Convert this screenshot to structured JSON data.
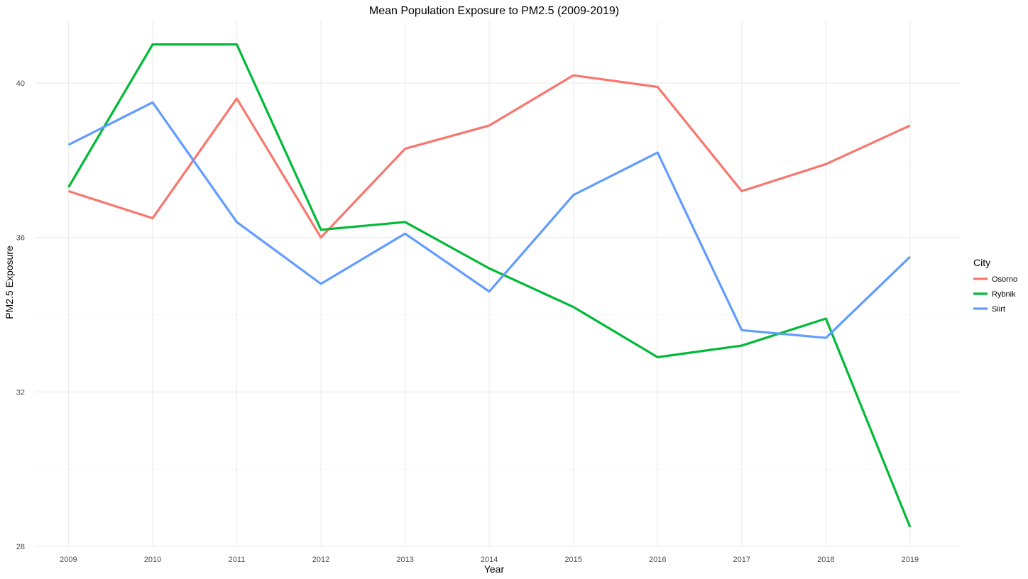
{
  "chart_data": {
    "type": "line",
    "title": "Mean Population Exposure to PM2.5 (2009-2019)",
    "xlabel": "Year",
    "ylabel": "PM2.5 Exposure",
    "x": [
      2009,
      2010,
      2011,
      2012,
      2013,
      2014,
      2015,
      2016,
      2017,
      2018,
      2019
    ],
    "x_tick_labels": [
      "2009",
      "2010",
      "2011",
      "2012",
      "2013",
      "2014",
      "2015",
      "2016",
      "2017",
      "2018",
      "2019"
    ],
    "xlim": [
      2008.6,
      2019.6
    ],
    "ylim": [
      28,
      41.6
    ],
    "y_major_ticks": [
      28,
      32,
      36,
      40
    ],
    "y_tick_labels": [
      "28",
      "32",
      "36",
      "40"
    ],
    "y_minor_ticks": [
      30,
      34,
      38
    ],
    "grid": true,
    "legend": {
      "title": "City",
      "position": "right"
    },
    "series": [
      {
        "name": "Osorno",
        "color": "#F8766D",
        "values": [
          37.2,
          36.5,
          39.6,
          36.0,
          38.3,
          38.9,
          40.2,
          39.9,
          37.2,
          37.9,
          38.9
        ]
      },
      {
        "name": "Rybnik",
        "color": "#00BA38",
        "values": [
          37.3,
          41.0,
          41.0,
          36.2,
          36.4,
          35.2,
          34.2,
          32.9,
          33.2,
          33.9,
          28.5
        ]
      },
      {
        "name": "Siirt",
        "color": "#619CFF",
        "values": [
          38.4,
          39.5,
          36.4,
          34.8,
          36.1,
          34.6,
          37.1,
          38.2,
          33.6,
          33.4,
          35.5
        ]
      }
    ]
  }
}
